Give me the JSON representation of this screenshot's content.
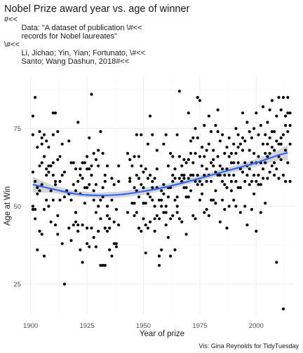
{
  "chart_data": {
    "type": "scatter",
    "title": "Nobel Prize award year vs. age of winner",
    "subtitle_lines": [
      "#<<",
      "        Data: \"A dataset of publication \\#<<",
      "        records for Nobel laureates\"",
      "\\#<<",
      "        Li, Jichao; Yin, Yian; Fortunato, \\#<<",
      "        Santo; Wang Dashun, 2018#<<"
    ],
    "xlabel": "Year of prize",
    "ylabel": "Age at Win",
    "caption": "Vis: Gina Reynolds for TidyTuesday",
    "xlim": [
      1897,
      2017
    ],
    "ylim": [
      15,
      92
    ],
    "x_ticks": [
      1900,
      1925,
      1950,
      1975,
      2000
    ],
    "x_tick_labels": [
      "1900",
      "1925",
      "1950",
      "1975",
      "2000"
    ],
    "y_ticks": [
      25,
      50,
      75
    ],
    "y_tick_labels": [
      "25",
      "50",
      "75"
    ],
    "grid": true,
    "point_color": "#000000",
    "smooth_color": "#3366ff",
    "band_color": "#999999",
    "smooth_line": {
      "x": [
        1901,
        1910,
        1920,
        1930,
        1940,
        1950,
        1960,
        1970,
        1980,
        1990,
        2000,
        2010,
        2014
      ],
      "y": [
        57,
        55.5,
        54,
        53.5,
        53.8,
        54.8,
        56.2,
        58,
        60,
        62,
        64,
        66.5,
        67.2
      ],
      "lower": [
        54.5,
        54.3,
        53.1,
        52.6,
        52.8,
        53.7,
        55.2,
        57.1,
        59.1,
        61,
        62.8,
        64.8,
        64.7
      ],
      "upper": [
        59.5,
        56.7,
        54.9,
        54.4,
        54.8,
        55.9,
        57.2,
        58.9,
        60.9,
        63,
        65.2,
        68.2,
        69.7
      ]
    },
    "points": [
      [
        1901,
        79
      ],
      [
        1901,
        73
      ],
      [
        1901,
        61
      ],
      [
        1901,
        49
      ],
      [
        1901,
        50
      ],
      [
        1902,
        85
      ],
      [
        1902,
        58
      ],
      [
        1902,
        49
      ],
      [
        1902,
        46
      ],
      [
        1903,
        69
      ],
      [
        1903,
        56
      ],
      [
        1903,
        54
      ],
      [
        1903,
        36
      ],
      [
        1904,
        74
      ],
      [
        1904,
        63
      ],
      [
        1904,
        55
      ],
      [
        1904,
        42
      ],
      [
        1905,
        70
      ],
      [
        1905,
        72
      ],
      [
        1905,
        64
      ],
      [
        1905,
        57
      ],
      [
        1905,
        41
      ],
      [
        1906,
        73
      ],
      [
        1906,
        66
      ],
      [
        1906,
        49
      ],
      [
        1906,
        34
      ],
      [
        1907,
        71
      ],
      [
        1907,
        62
      ],
      [
        1907,
        60
      ],
      [
        1907,
        52
      ],
      [
        1908,
        61
      ],
      [
        1908,
        69
      ],
      [
        1908,
        50
      ],
      [
        1908,
        63
      ],
      [
        1909,
        63
      ],
      [
        1909,
        55
      ],
      [
        1909,
        45
      ],
      [
        1910,
        64
      ],
      [
        1910,
        73
      ],
      [
        1910,
        80
      ],
      [
        1910,
        60
      ],
      [
        1910,
        52
      ],
      [
        1911,
        80
      ],
      [
        1911,
        44
      ],
      [
        1911,
        58
      ],
      [
        1911,
        57
      ],
      [
        1912,
        74
      ],
      [
        1912,
        65
      ],
      [
        1912,
        47
      ],
      [
        1912,
        41
      ],
      [
        1913,
        58
      ],
      [
        1913,
        52
      ],
      [
        1913,
        66
      ],
      [
        1914,
        60
      ],
      [
        1914,
        70
      ],
      [
        1914,
        38
      ],
      [
        1915,
        25
      ],
      [
        1915,
        53
      ],
      [
        1915,
        61
      ],
      [
        1916,
        55
      ],
      [
        1917,
        71
      ],
      [
        1917,
        54
      ],
      [
        1917,
        43
      ],
      [
        1918,
        64
      ],
      [
        1918,
        52
      ],
      [
        1918,
        39
      ],
      [
        1919,
        44
      ],
      [
        1919,
        64
      ],
      [
        1919,
        57
      ],
      [
        1920,
        62
      ],
      [
        1920,
        45
      ],
      [
        1920,
        55
      ],
      [
        1920,
        48
      ],
      [
        1921,
        58
      ],
      [
        1921,
        44
      ],
      [
        1921,
        77
      ],
      [
        1921,
        42
      ],
      [
        1922,
        36
      ],
      [
        1922,
        60
      ],
      [
        1922,
        62
      ],
      [
        1922,
        54
      ],
      [
        1923,
        59
      ],
      [
        1923,
        64
      ],
      [
        1923,
        32
      ],
      [
        1923,
        44
      ],
      [
        1924,
        56
      ],
      [
        1924,
        51
      ],
      [
        1924,
        64
      ],
      [
        1925,
        66
      ],
      [
        1925,
        62
      ],
      [
        1925,
        38
      ],
      [
        1925,
        56
      ],
      [
        1925,
        43
      ],
      [
        1926,
        57
      ],
      [
        1926,
        72
      ],
      [
        1926,
        62
      ],
      [
        1926,
        37
      ],
      [
        1927,
        86
      ],
      [
        1927,
        60
      ],
      [
        1927,
        43
      ],
      [
        1927,
        63
      ],
      [
        1928,
        67
      ],
      [
        1928,
        40
      ],
      [
        1928,
        55
      ],
      [
        1928,
        52
      ],
      [
        1929,
        57
      ],
      [
        1929,
        65
      ],
      [
        1929,
        37
      ],
      [
        1929,
        48
      ],
      [
        1930,
        68
      ],
      [
        1930,
        50
      ],
      [
        1930,
        42
      ],
      [
        1930,
        63
      ],
      [
        1931,
        52
      ],
      [
        1931,
        74
      ],
      [
        1931,
        31
      ],
      [
        1931,
        46
      ],
      [
        1932,
        53
      ],
      [
        1932,
        67
      ],
      [
        1932,
        31
      ],
      [
        1932,
        56
      ],
      [
        1933,
        58
      ],
      [
        1933,
        43
      ],
      [
        1933,
        31
      ],
      [
        1933,
        60
      ],
      [
        1934,
        50
      ],
      [
        1934,
        42
      ],
      [
        1934,
        63
      ],
      [
        1934,
        47
      ],
      [
        1935,
        46
      ],
      [
        1935,
        36
      ],
      [
        1935,
        43
      ],
      [
        1936,
        59
      ],
      [
        1936,
        34
      ],
      [
        1936,
        52
      ],
      [
        1937,
        45
      ],
      [
        1937,
        57
      ],
      [
        1937,
        38
      ],
      [
        1938,
        37
      ],
      [
        1938,
        38
      ],
      [
        1938,
        49
      ],
      [
        1939,
        58
      ],
      [
        1939,
        63
      ],
      [
        1939,
        44
      ],
      [
        1943,
        67
      ],
      [
        1943,
        48
      ],
      [
        1944,
        65
      ],
      [
        1944,
        59
      ],
      [
        1944,
        58
      ],
      [
        1945,
        63
      ],
      [
        1945,
        51
      ],
      [
        1946,
        66
      ],
      [
        1946,
        51
      ],
      [
        1946,
        56
      ],
      [
        1946,
        47
      ],
      [
        1947,
        60
      ],
      [
        1947,
        73
      ],
      [
        1947,
        55
      ],
      [
        1947,
        48
      ],
      [
        1948,
        59
      ],
      [
        1948,
        66
      ],
      [
        1948,
        43
      ],
      [
        1948,
        53
      ],
      [
        1949,
        73
      ],
      [
        1949,
        42
      ],
      [
        1949,
        63
      ],
      [
        1949,
        57
      ],
      [
        1950,
        51
      ],
      [
        1950,
        61
      ],
      [
        1950,
        56
      ],
      [
        1950,
        46
      ],
      [
        1951,
        44
      ],
      [
        1951,
        51
      ],
      [
        1951,
        62
      ],
      [
        1951,
        35
      ],
      [
        1952,
        54
      ],
      [
        1952,
        70
      ],
      [
        1952,
        43
      ],
      [
        1952,
        59
      ],
      [
        1953,
        45
      ],
      [
        1953,
        79
      ],
      [
        1953,
        53
      ],
      [
        1953,
        60
      ],
      [
        1954,
        52
      ],
      [
        1954,
        58
      ],
      [
        1954,
        73
      ],
      [
        1954,
        56
      ],
      [
        1955,
        46
      ],
      [
        1955,
        59
      ],
      [
        1955,
        50
      ],
      [
        1955,
        42
      ],
      [
        1956,
        56
      ],
      [
        1956,
        62
      ],
      [
        1956,
        47
      ],
      [
        1956,
        68
      ],
      [
        1957,
        34
      ],
      [
        1957,
        31
      ],
      [
        1957,
        46
      ],
      [
        1957,
        52
      ],
      [
        1958,
        36
      ],
      [
        1958,
        55
      ],
      [
        1958,
        52
      ],
      [
        1958,
        50
      ],
      [
        1959,
        48
      ],
      [
        1959,
        57
      ],
      [
        1959,
        70
      ],
      [
        1959,
        54
      ],
      [
        1960,
        73
      ],
      [
        1960,
        48
      ],
      [
        1960,
        50
      ],
      [
        1960,
        44
      ],
      [
        1961,
        53
      ],
      [
        1961,
        40
      ],
      [
        1961,
        56
      ],
      [
        1961,
        63
      ],
      [
        1962,
        46
      ],
      [
        1962,
        56
      ],
      [
        1962,
        67
      ],
      [
        1962,
        34
      ],
      [
        1963,
        60
      ],
      [
        1963,
        58
      ],
      [
        1963,
        66
      ],
      [
        1963,
        47
      ],
      [
        1964,
        62
      ],
      [
        1964,
        36
      ],
      [
        1964,
        59
      ],
      [
        1964,
        52
      ],
      [
        1965,
        48
      ],
      [
        1965,
        53
      ],
      [
        1965,
        73
      ],
      [
        1965,
        50
      ],
      [
        1966,
        59
      ],
      [
        1966,
        46
      ],
      [
        1966,
        87
      ],
      [
        1966,
        66
      ],
      [
        1967,
        63
      ],
      [
        1967,
        45
      ],
      [
        1967,
        60
      ],
      [
        1967,
        58
      ],
      [
        1968,
        59
      ],
      [
        1968,
        60
      ],
      [
        1968,
        56
      ],
      [
        1968,
        65
      ],
      [
        1969,
        41
      ],
      [
        1969,
        53
      ],
      [
        1969,
        64
      ],
      [
        1969,
        56
      ],
      [
        1970,
        65
      ],
      [
        1970,
        80
      ],
      [
        1970,
        53
      ],
      [
        1970,
        59
      ],
      [
        1971,
        55
      ],
      [
        1971,
        67
      ],
      [
        1971,
        60
      ],
      [
        1971,
        71
      ],
      [
        1972,
        47
      ],
      [
        1972,
        64
      ],
      [
        1972,
        60
      ],
      [
        1972,
        72
      ],
      [
        1973,
        46
      ],
      [
        1973,
        75
      ],
      [
        1973,
        67
      ],
      [
        1973,
        58
      ],
      [
        1974,
        85
      ],
      [
        1974,
        72
      ],
      [
        1974,
        57
      ],
      [
        1974,
        60
      ],
      [
        1975,
        84
      ],
      [
        1975,
        58
      ],
      [
        1975,
        66
      ],
      [
        1975,
        52
      ],
      [
        1976,
        54
      ],
      [
        1976,
        63
      ],
      [
        1976,
        57
      ],
      [
        1976,
        69
      ],
      [
        1977,
        76
      ],
      [
        1977,
        60
      ],
      [
        1977,
        66
      ],
      [
        1977,
        48
      ],
      [
        1978,
        58
      ],
      [
        1978,
        68
      ],
      [
        1978,
        49
      ],
      [
        1978,
        62
      ],
      [
        1979,
        79
      ],
      [
        1979,
        47
      ],
      [
        1979,
        70
      ],
      [
        1979,
        60
      ],
      [
        1980,
        74
      ],
      [
        1980,
        52
      ],
      [
        1980,
        64
      ],
      [
        1980,
        58
      ],
      [
        1981,
        65
      ],
      [
        1981,
        52
      ],
      [
        1981,
        63
      ],
      [
        1981,
        68
      ],
      [
        1982,
        51
      ],
      [
        1982,
        61
      ],
      [
        1982,
        55
      ],
      [
        1982,
        76
      ],
      [
        1983,
        74
      ],
      [
        1983,
        66
      ],
      [
        1983,
        60
      ],
      [
        1983,
        81
      ],
      [
        1984,
        45
      ],
      [
        1984,
        63
      ],
      [
        1984,
        60
      ],
      [
        1984,
        71
      ],
      [
        1985,
        73
      ],
      [
        1985,
        58
      ],
      [
        1985,
        52
      ],
      [
        1985,
        62
      ],
      [
        1986,
        60
      ],
      [
        1986,
        67
      ],
      [
        1986,
        57
      ],
      [
        1986,
        49
      ],
      [
        1987,
        62
      ],
      [
        1987,
        56
      ],
      [
        1987,
        69
      ],
      [
        1987,
        43
      ],
      [
        1988,
        66
      ],
      [
        1988,
        60
      ],
      [
        1988,
        50
      ],
      [
        1988,
        72
      ],
      [
        1989,
        55
      ],
      [
        1989,
        64
      ],
      [
        1989,
        67
      ],
      [
        1989,
        58
      ],
      [
        1990,
        52
      ],
      [
        1990,
        70
      ],
      [
        1990,
        64
      ],
      [
        1990,
        60
      ],
      [
        1991,
        58
      ],
      [
        1991,
        67
      ],
      [
        1991,
        50
      ],
      [
        1991,
        75
      ],
      [
        1992,
        64
      ],
      [
        1992,
        73
      ],
      [
        1992,
        56
      ],
      [
        1992,
        69
      ],
      [
        1993,
        70
      ],
      [
        1993,
        56
      ],
      [
        1993,
        62
      ],
      [
        1993,
        48
      ],
      [
        1994,
        72
      ],
      [
        1994,
        68
      ],
      [
        1994,
        80
      ],
      [
        1994,
        61
      ],
      [
        1995,
        64
      ],
      [
        1995,
        58
      ],
      [
        1995,
        71
      ],
      [
        1995,
        50
      ],
      [
        1996,
        60
      ],
      [
        1996,
        77
      ],
      [
        1996,
        63
      ],
      [
        1996,
        44
      ],
      [
        1997,
        68
      ],
      [
        1997,
        74
      ],
      [
        1997,
        57
      ],
      [
        1997,
        62
      ],
      [
        1998,
        58
      ],
      [
        1998,
        64
      ],
      [
        1998,
        72
      ],
      [
        1998,
        49
      ],
      [
        1999,
        60
      ],
      [
        1999,
        75
      ],
      [
        1999,
        67
      ],
      [
        1999,
        54
      ],
      [
        2000,
        64
      ],
      [
        2000,
        80
      ],
      [
        2000,
        58
      ],
      [
        2000,
        42
      ],
      [
        2001,
        60
      ],
      [
        2001,
        73
      ],
      [
        2001,
        66
      ],
      [
        2001,
        57
      ],
      [
        2002,
        57
      ],
      [
        2002,
        76
      ],
      [
        2002,
        64
      ],
      [
        2002,
        48
      ],
      [
        2003,
        62
      ],
      [
        2003,
        82
      ],
      [
        2003,
        70
      ],
      [
        2003,
        59
      ],
      [
        2004,
        64
      ],
      [
        2004,
        73
      ],
      [
        2004,
        51
      ],
      [
        2004,
        67
      ],
      [
        2005,
        66
      ],
      [
        2005,
        77
      ],
      [
        2005,
        59
      ],
      [
        2005,
        70
      ],
      [
        2006,
        61
      ],
      [
        2006,
        72
      ],
      [
        2006,
        67
      ],
      [
        2006,
        81
      ],
      [
        2007,
        63
      ],
      [
        2007,
        74
      ],
      [
        2007,
        84
      ],
      [
        2007,
        69
      ],
      [
        2008,
        68
      ],
      [
        2008,
        74
      ],
      [
        2008,
        64
      ],
      [
        2008,
        60
      ],
      [
        2009,
        32
      ],
      [
        2009,
        79
      ],
      [
        2009,
        62
      ],
      [
        2009,
        71
      ],
      [
        2010,
        70
      ],
      [
        2010,
        85
      ],
      [
        2010,
        59
      ],
      [
        2010,
        66
      ],
      [
        2011,
        70
      ],
      [
        2011,
        81
      ],
      [
        2011,
        65
      ],
      [
        2011,
        72
      ],
      [
        2012,
        85
      ],
      [
        2012,
        73
      ],
      [
        2012,
        17
      ],
      [
        2012,
        60
      ],
      [
        2013,
        76
      ],
      [
        2013,
        68
      ],
      [
        2013,
        79
      ],
      [
        2013,
        58
      ],
      [
        2014,
        80
      ],
      [
        2014,
        85
      ],
      [
        2014,
        64
      ],
      [
        2014,
        74
      ],
      [
        2015,
        80
      ],
      [
        2015,
        70
      ],
      [
        2015,
        76
      ],
      [
        2015,
        58
      ]
    ]
  }
}
